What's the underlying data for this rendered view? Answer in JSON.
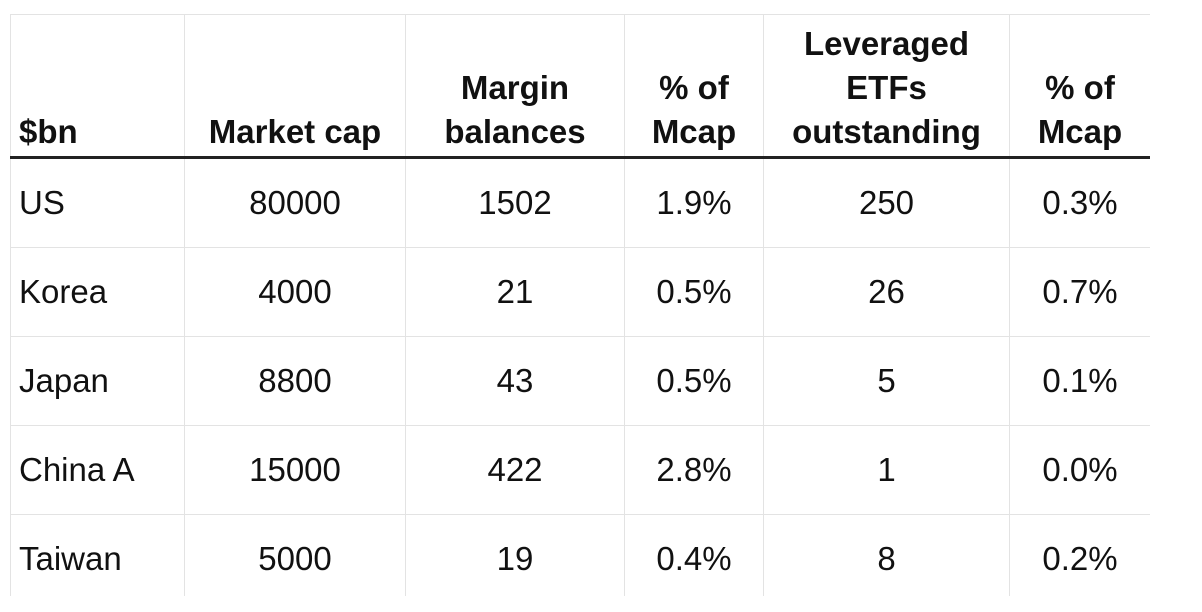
{
  "chart_data": {
    "type": "table",
    "columns": [
      "$bn",
      "Market cap",
      "Margin\nbalances",
      "% of\nMcap",
      "Leveraged\nETFs\noutstanding",
      "% of\nMcap"
    ],
    "rows": [
      [
        "US",
        "80000",
        "1502",
        "1.9%",
        "250",
        "0.3%"
      ],
      [
        "Korea",
        "4000",
        "21",
        "0.5%",
        "26",
        "0.7%"
      ],
      [
        "Japan",
        "8800",
        "43",
        "0.5%",
        "5",
        "0.1%"
      ],
      [
        "China A",
        "15000",
        "422",
        "2.8%",
        "1",
        "0.0%"
      ],
      [
        "Taiwan",
        "5000",
        "19",
        "0.4%",
        "8",
        "0.2%"
      ]
    ]
  }
}
